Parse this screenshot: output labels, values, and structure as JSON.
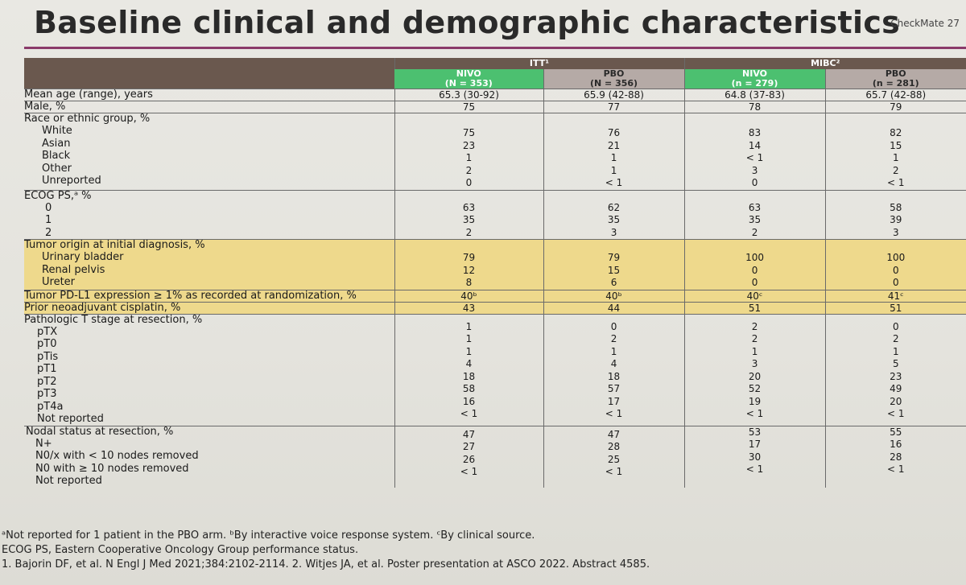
{
  "title": "Baseline clinical and demographic characteristics",
  "brand": "CheckMate 27",
  "groups": {
    "itt": "ITT¹",
    "mibc": "MIBC²"
  },
  "columns": [
    {
      "arm": "NIVO",
      "n": "(N = 353)"
    },
    {
      "arm": "PBO",
      "n": "(N = 356)"
    },
    {
      "arm": "NIVO",
      "n": "(n = 279)"
    },
    {
      "arm": "PBO",
      "n": "(n = 281)"
    }
  ],
  "rows": {
    "age": {
      "label": "Mean age (range), years",
      "values": [
        "65.3 (30-92)",
        "65.9 (42-88)",
        "64.8 (37-83)",
        "65.7 (42-88)"
      ]
    },
    "male": {
      "label": "Male, %",
      "values": [
        "75",
        "77",
        "78",
        "79"
      ]
    },
    "race": {
      "label": "Race or ethnic group, %",
      "subs": [
        "White",
        "Asian",
        "Black",
        "Other",
        "Unreported"
      ],
      "values": [
        [
          "75",
          "23",
          "1",
          "2",
          "0"
        ],
        [
          "76",
          "21",
          "1",
          "1",
          "< 1"
        ],
        [
          "83",
          "14",
          "< 1",
          "3",
          "0"
        ],
        [
          "82",
          "15",
          "1",
          "2",
          "< 1"
        ]
      ]
    },
    "ecog": {
      "label": "ECOG PS,ᵃ %",
      "subs": [
        "0",
        "1",
        "2"
      ],
      "values": [
        [
          "63",
          "35",
          "2"
        ],
        [
          "62",
          "35",
          "3"
        ],
        [
          "63",
          "35",
          "2"
        ],
        [
          "58",
          "39",
          "3"
        ]
      ]
    },
    "origin": {
      "label": "Tumor origin at initial diagnosis, %",
      "subs": [
        "Urinary bladder",
        "Renal pelvis",
        "Ureter"
      ],
      "values": [
        [
          "79",
          "12",
          "8"
        ],
        [
          "79",
          "15",
          "6"
        ],
        [
          "100",
          "0",
          "0"
        ],
        [
          "100",
          "0",
          "0"
        ]
      ]
    },
    "pdl1": {
      "label": "Tumor PD-L1 expression ≥ 1% as recorded at randomization, %",
      "values": [
        "40ᵇ",
        "40ᵇ",
        "40ᶜ",
        "41ᶜ"
      ]
    },
    "cis": {
      "label": "Prior neoadjuvant cisplatin, %",
      "values": [
        "43",
        "44",
        "51",
        "51"
      ]
    },
    "tstage": {
      "label": "Pathologic T stage at resection, %",
      "subs": [
        "pTX",
        "pT0",
        "pTis",
        "pT1",
        "pT2",
        "pT3",
        "pT4a",
        "Not reported"
      ],
      "values": [
        [
          "1",
          "1",
          "1",
          "4",
          "18",
          "58",
          "16",
          "< 1"
        ],
        [
          "0",
          "2",
          "1",
          "4",
          "18",
          "57",
          "17",
          "< 1"
        ],
        [
          "2",
          "2",
          "1",
          "3",
          "20",
          "52",
          "19",
          "< 1"
        ],
        [
          "0",
          "2",
          "1",
          "5",
          "23",
          "49",
          "20",
          "< 1"
        ]
      ]
    },
    "nodal": {
      "label": "Nodal status at resection, %",
      "subs": [
        "N+",
        "N0/x with < 10 nodes removed",
        "N0 with ≥ 10 nodes removed",
        "Not reported"
      ],
      "values": [
        [
          "47",
          "27",
          "26",
          "< 1"
        ],
        [
          "47",
          "28",
          "25",
          "< 1"
        ],
        [
          "53",
          "17",
          "30",
          "< 1"
        ],
        [
          "55",
          "16",
          "28",
          "< 1"
        ]
      ]
    }
  },
  "footnotes": [
    "ᵃNot reported for 1 patient in the PBO arm. ᵇBy interactive voice response system. ᶜBy clinical source.",
    "ECOG PS, Eastern Cooperative Oncology Group performance status.",
    "1. Bajorin DF, et al. N Engl J Med 2021;384:2102-2114. 2. Witjes JA, et al. Poster presentation at ASCO 2022. Abstract 4585."
  ]
}
